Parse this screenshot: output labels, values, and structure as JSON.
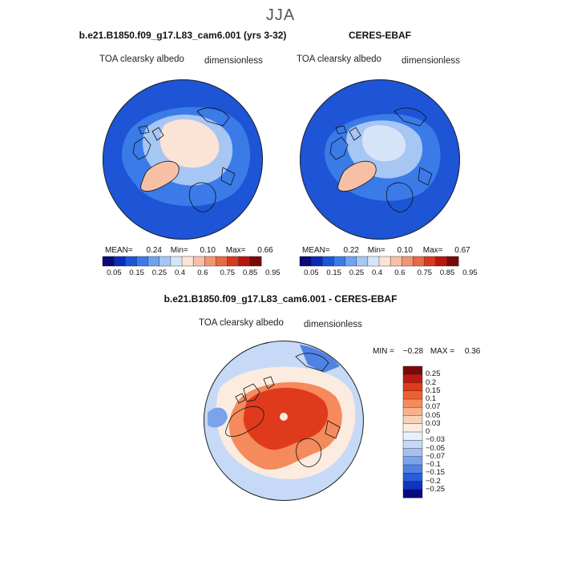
{
  "figure": {
    "season": "JJA"
  },
  "panels": [
    {
      "title": "b.e21.B1850.f09_g17.L83_cam6.001 (yrs 3-32)",
      "variable_label": "TOA clearsky albedo",
      "units_label": "dimensionless",
      "mean_label": "MEAN=",
      "mean_value": "0.24",
      "min_label": "Min=",
      "min_value": "0.10",
      "max_label": "Max=",
      "max_value": "0.66"
    },
    {
      "title": "CERES-EBAF",
      "variable_label": "TOA clearsky albedo",
      "units_label": "dimensionless",
      "mean_label": "MEAN=",
      "mean_value": "0.22",
      "min_label": "Min=",
      "min_value": "0.10",
      "max_label": "Max=",
      "max_value": "0.67"
    },
    {
      "title": "b.e21.B1850.f09_g17.L83_cam6.001 - CERES-EBAF",
      "variable_label": "TOA clearsky albedo",
      "units_label": "dimensionless",
      "min_label": "MIN =",
      "min_value": "−0.28",
      "max_label": "MAX =",
      "max_value": "0.36"
    }
  ],
  "colorbars": {
    "abs": {
      "colors": [
        "#0a0a78",
        "#0b2bb8",
        "#1d55d6",
        "#3a7be8",
        "#6ea3f0",
        "#a6c6f4",
        "#d5e4f8",
        "#fbe3d6",
        "#f7c0a6",
        "#f09673",
        "#e66a45",
        "#d63a1e",
        "#b8160f",
        "#7a0a0a"
      ],
      "tick_labels": [
        "0.05",
        "0.15",
        "0.25",
        "0.4",
        "0.6",
        "0.75",
        "0.85",
        "0.95"
      ]
    },
    "diff": {
      "colors": [
        "#7a0a0a",
        "#c01810",
        "#e03a1c",
        "#f0602e",
        "#f58a5c",
        "#f8b08e",
        "#fad0b8",
        "#fbecdf",
        "#e8f0fb",
        "#c6d9f6",
        "#a2c0f2",
        "#7aa3ec",
        "#4f82e3",
        "#2a5dd8",
        "#0f35c0",
        "#0a0a80"
      ],
      "tick_labels": [
        "0.25",
        "0.2",
        "0.15",
        "0.1",
        "0.07",
        "0.05",
        "0.03",
        "0",
        "−0.03",
        "−0.05",
        "−0.07",
        "−0.1",
        "−0.15",
        "−0.2",
        "−0.25"
      ]
    }
  },
  "chart_data": [
    {
      "type": "heatmap",
      "projection": "north-polar-stereographic",
      "title": "b.e21.B1850.f09_g17.L83_cam6.001 (yrs 3-32)",
      "variable": "TOA clearsky albedo",
      "units": "dimensionless",
      "stats": {
        "mean": 0.24,
        "min": 0.1,
        "max": 0.66
      },
      "levels": [
        0.05,
        0.1,
        0.15,
        0.2,
        0.25,
        0.3,
        0.4,
        0.5,
        0.6,
        0.7,
        0.75,
        0.8,
        0.85,
        0.9,
        0.95
      ],
      "colorbar_placement": "bottom"
    },
    {
      "type": "heatmap",
      "projection": "north-polar-stereographic",
      "title": "CERES-EBAF",
      "variable": "TOA clearsky albedo",
      "units": "dimensionless",
      "stats": {
        "mean": 0.22,
        "min": 0.1,
        "max": 0.67
      },
      "levels": [
        0.05,
        0.1,
        0.15,
        0.2,
        0.25,
        0.3,
        0.4,
        0.5,
        0.6,
        0.7,
        0.75,
        0.8,
        0.85,
        0.9,
        0.95
      ],
      "colorbar_placement": "bottom"
    },
    {
      "type": "heatmap",
      "projection": "north-polar-stereographic",
      "title": "b.e21.B1850.f09_g17.L83_cam6.001 - CERES-EBAF",
      "variable": "TOA clearsky albedo",
      "units": "dimensionless",
      "stats": {
        "min": -0.28,
        "max": 0.36
      },
      "levels": [
        0.25,
        0.2,
        0.15,
        0.1,
        0.07,
        0.05,
        0.03,
        0,
        -0.03,
        -0.05,
        -0.07,
        -0.1,
        -0.15,
        -0.2,
        -0.25
      ],
      "colorbar_placement": "right"
    }
  ]
}
